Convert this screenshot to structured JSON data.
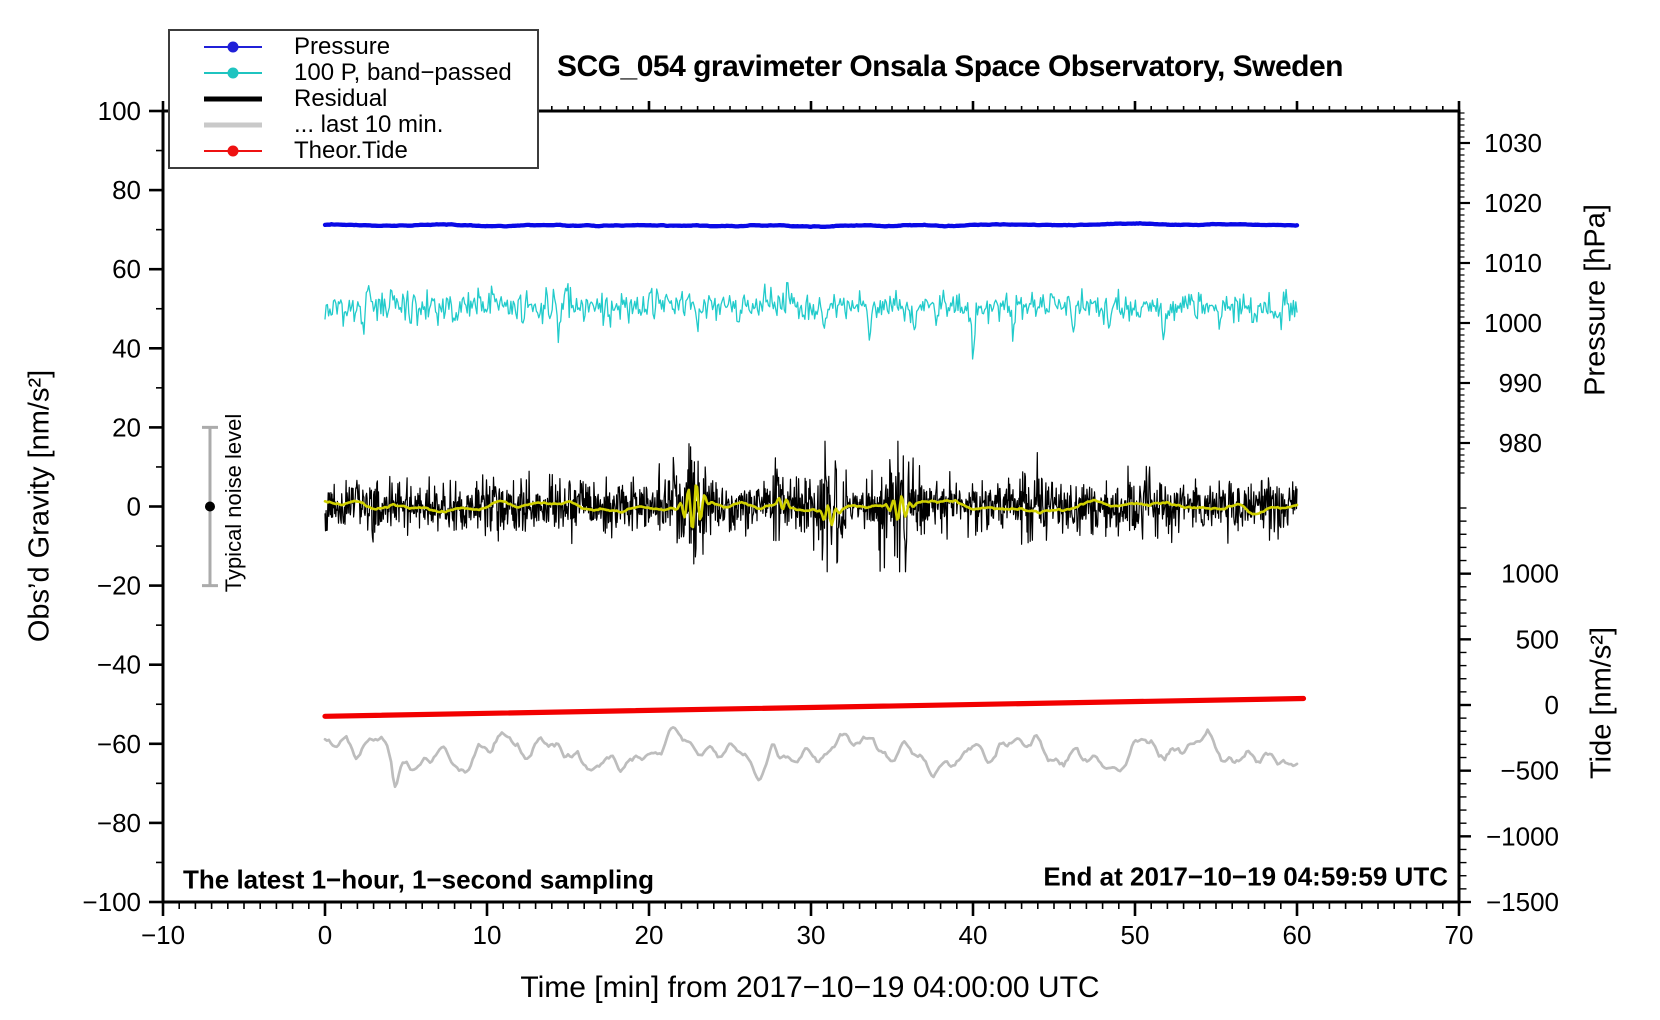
{
  "figure": {
    "title": "SCG_054 gravimeter Onsala Space Observatory, Sweden"
  },
  "annotations": {
    "sampling_note": "The latest 1−hour, 1−second sampling",
    "end_note": "End at 2017−10−19 04:59:59 UTC",
    "noise_label": "Typical noise level"
  },
  "legend": {
    "items": [
      {
        "label": "Pressure",
        "color": "#2020d8",
        "marker": true,
        "thick": false
      },
      {
        "label": "100 P, band−passed",
        "color": "#1fc4c0",
        "marker": true,
        "thick": false
      },
      {
        "label": "Residual",
        "color": "#000000",
        "marker": false,
        "thick": true
      },
      {
        "label": "... last 10 min.",
        "color": "#c9c9c9",
        "marker": false,
        "thick": true
      },
      {
        "label": "Theor.Tide",
        "color": "#ee1111",
        "marker": true,
        "thick": false
      }
    ]
  },
  "chart_data": {
    "type": "line",
    "title": "SCG_054 gravimeter Onsala Space Observatory, Sweden",
    "grid": false,
    "legend_position": "top-left",
    "x_axis": {
      "label": "Time [min] from 2017−10−19 04:00:00 UTC",
      "range": [
        -10,
        70
      ],
      "tick_values": [
        -10,
        0,
        10,
        20,
        30,
        40,
        50,
        60,
        70
      ],
      "tick_labels": [
        "−10",
        "0",
        "10",
        "20",
        "30",
        "40",
        "50",
        "60",
        "70"
      ],
      "minor_step": 1
    },
    "y_axis_gravity": {
      "label": "Obs’d Gravity [nm/s²]",
      "side": "left",
      "range": [
        -100,
        100
      ],
      "tick_values": [
        100,
        80,
        60,
        40,
        20,
        0,
        -20,
        -40,
        -60,
        -80,
        -100
      ],
      "tick_labels": [
        "100",
        "80",
        "60",
        "40",
        "20",
        "0",
        "−20",
        "−40",
        "−60",
        "−80",
        "−100"
      ],
      "minor_step": 10
    },
    "y_axis_pressure": {
      "label": "Pressure [hPa]",
      "side": "right-upper",
      "tick_values": [
        1030,
        1020,
        1010,
        1000,
        990,
        980
      ],
      "tick_labels": [
        "1030",
        "1020",
        "1010",
        "1000",
        "990",
        "980"
      ],
      "minor_step": 1
    },
    "y_axis_tide": {
      "label": "Tide [nm/s²]",
      "side": "right-lower",
      "tick_values": [
        1000,
        500,
        0,
        -500,
        -1000,
        -1500
      ],
      "tick_labels": [
        "1000",
        "500",
        "0",
        "−500",
        "−1000",
        "−1500"
      ],
      "minor_step": 100
    },
    "noise_bar": {
      "t": -7.1,
      "center": 0,
      "half_range": 20,
      "label": "Typical noise level",
      "bar_color": "#ababab",
      "dot_color": "#000000"
    },
    "series": [
      {
        "label": "Pressure",
        "axis": "pressure",
        "color": "#0a0ae6",
        "width": 4.3,
        "summary": {
          "t_range": [
            0,
            60
          ],
          "approx_value_hpa": 1016.3,
          "noise_hpa": 0.2
        },
        "gen": {
          "type": "flat",
          "base": 1016.28,
          "t0": 0,
          "t1": 60,
          "n": 601
        }
      },
      {
        "label": "100 P, band−passed",
        "axis": "gravity",
        "color": "#22cbcb",
        "width": 1.3,
        "summary": {
          "t_range": [
            0,
            60
          ],
          "baseline": 50.5,
          "typical_amp": 3,
          "largest_dip": {
            "t": 40,
            "value": 37
          }
        },
        "gen": {
          "type": "hf",
          "base": 50.6,
          "sigma": 1.75,
          "clamp": 4.8,
          "t0": 0,
          "t1": 60,
          "n": 801,
          "spikes": [
            [
              1.2,
              -4
            ],
            [
              2.3,
              -7.5
            ],
            [
              2.65,
              5
            ],
            [
              4.1,
              4
            ],
            [
              5.3,
              -5
            ],
            [
              8.1,
              -5
            ],
            [
              10.4,
              4
            ],
            [
              12.2,
              -4.5
            ],
            [
              14.4,
              -6.5
            ],
            [
              14.9,
              4.5
            ],
            [
              17.6,
              -4
            ],
            [
              20.1,
              4
            ],
            [
              23.0,
              -7
            ],
            [
              25.5,
              -4
            ],
            [
              27.2,
              4.5
            ],
            [
              28.6,
              5
            ],
            [
              30.8,
              -5
            ],
            [
              33.6,
              -8.5
            ],
            [
              36.4,
              -5
            ],
            [
              38.2,
              4
            ],
            [
              40.0,
              -13.5
            ],
            [
              42.5,
              -5
            ],
            [
              44.9,
              4
            ],
            [
              46.2,
              -5.5
            ],
            [
              48.4,
              -4
            ],
            [
              51.8,
              -7.5
            ],
            [
              53.4,
              4
            ],
            [
              55.2,
              -5
            ],
            [
              57.3,
              -4.5
            ],
            [
              59.0,
              -4
            ]
          ]
        }
      },
      {
        "label": "Residual",
        "axis": "gravity",
        "color": "#000000",
        "width": 1.2,
        "summary": {
          "t_range": [
            0,
            60
          ],
          "baseline": 0,
          "typical_amp": 5,
          "bursts": [
            {
              "t": 22.7,
              "peak": 14
            },
            {
              "t": 28.3,
              "peak": 10
            },
            {
              "t": 31.2,
              "peak": 13
            },
            {
              "t": 35.5,
              "peak": 16
            }
          ]
        },
        "gen": {
          "type": "burst",
          "sigma": 3.25,
          "clamp": 16.5,
          "t0": 0,
          "t1": 60,
          "n": 1801,
          "bursts": [
            [
              22.7,
              1.55,
              1.15
            ],
            [
              28.3,
              1.0,
              0.7
            ],
            [
              31.2,
              1.35,
              0.9
            ],
            [
              35.5,
              1.65,
              1.15
            ],
            [
              43.5,
              0.35,
              1.5
            ],
            [
              51.0,
              0.3,
              1.2
            ]
          ]
        }
      },
      {
        "label": "Residual smoothed overlay",
        "axis": "gravity",
        "color": "#d0d000",
        "width": 2.6,
        "summary": {
          "t_range": [
            0,
            60
          ],
          "baseline": 0,
          "typical_amp": 2,
          "burst_amp": 8
        },
        "gen": {
          "type": "wavy",
          "t0": 0,
          "t1": 60,
          "n": 701,
          "packets": [
            [
              22.75,
              6.2,
              0.62
            ],
            [
              28.3,
              1.5,
              0.45
            ],
            [
              31.15,
              2.6,
              0.5
            ],
            [
              35.5,
              3.2,
              0.6
            ]
          ]
        }
      },
      {
        "label": "... last 10 min.",
        "axis": "gravity",
        "color": "#bdbdbd",
        "width": 2.7,
        "summary": {
          "t_range": [
            0,
            60
          ],
          "baseline": -62.5,
          "typical_amp": 7
        },
        "gen": {
          "type": "smoothnoise",
          "base": -62.4,
          "t0": 0,
          "t1": 60,
          "n": 501,
          "dips": [
            [
              4.35,
              -5.5,
              0.22
            ],
            [
              18.2,
              -3.0,
              0.3
            ],
            [
              27.65,
              4.5,
              0.35
            ],
            [
              33.8,
              3.5,
              0.3
            ]
          ]
        }
      },
      {
        "label": "Theor.Tide",
        "axis": "gravity",
        "color": "#f20000",
        "width": 5.2,
        "summary": {
          "t_range": [
            0,
            60.4
          ],
          "start_value": -53.0,
          "end_value": -48.6
        },
        "gen": {
          "type": "linear",
          "v0": -53.05,
          "v1": -48.55,
          "t0": 0,
          "t1": 60.4
        }
      }
    ]
  }
}
